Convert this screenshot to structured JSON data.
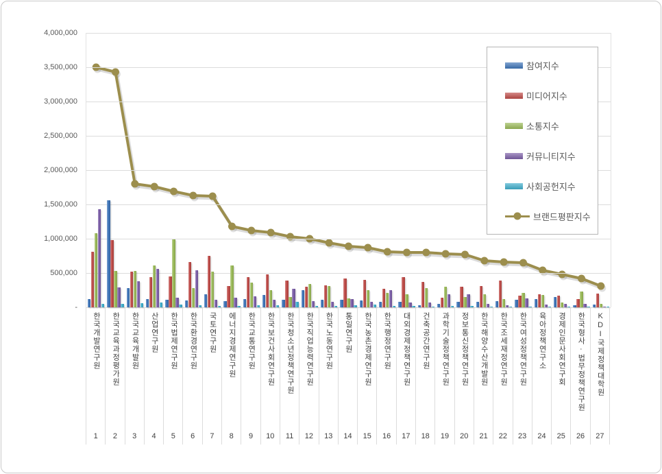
{
  "page": {
    "background": "#ffffff",
    "border_color": "#c9c9c9"
  },
  "chart_data": {
    "type": "bar",
    "title": "",
    "xlabel": "",
    "ylabel": "",
    "legend_position": "top-right",
    "grid": true,
    "y_axis": {
      "min": 0,
      "max": 4000000,
      "step": 500000,
      "tick_labels": [
        "4,000,000",
        "3,500,000",
        "3,000,000",
        "2,500,000",
        "2,000,000",
        "1,500,000",
        "1,000,000",
        "500,000",
        "-"
      ]
    },
    "categories": [
      "한국개발연구원",
      "한국교육과정평가원",
      "한국교육개발원",
      "산업연구원",
      "한국법제연구원",
      "한국환경연구원",
      "국토연구원",
      "에너지경제연구원",
      "한국교통연구원",
      "한국보건사회연구원",
      "한국청소년정책연구원",
      "한국직업능력연구원",
      "한국노동연구원",
      "통일연구원",
      "한국농촌경제연구원",
      "한국행정연구원",
      "대외경제정책연구원",
      "건축공간연구원",
      "과학기술정책연구원",
      "정보통신정책연구원",
      "한국해양수산개발원",
      "한국조세재정연구원",
      "한국여성정책연구원",
      "육아정책연구소",
      "경제인문사회연구회",
      "한국형사·법무정책연구원",
      "KDI국제정책대학원"
    ],
    "ranks": [
      "1",
      "2",
      "3",
      "4",
      "5",
      "6",
      "7",
      "8",
      "9",
      "10",
      "11",
      "12",
      "13",
      "14",
      "15",
      "16",
      "17",
      "18",
      "19",
      "20",
      "21",
      "22",
      "23",
      "24",
      "25",
      "26",
      "27"
    ],
    "series": [
      {
        "name": "참여지수",
        "color": "#3E74B8",
        "values": [
          120000,
          1560000,
          280000,
          120000,
          110000,
          100000,
          190000,
          90000,
          120000,
          180000,
          115000,
          250000,
          115000,
          110000,
          100000,
          80000,
          80000,
          30000,
          55000,
          80000,
          80000,
          90000,
          110000,
          120000,
          150000,
          30000,
          40000
        ]
      },
      {
        "name": "미디어지수",
        "color": "#BE4B48",
        "values": [
          810000,
          980000,
          520000,
          440000,
          450000,
          660000,
          750000,
          310000,
          440000,
          480000,
          390000,
          300000,
          320000,
          420000,
          400000,
          270000,
          440000,
          370000,
          140000,
          300000,
          310000,
          390000,
          170000,
          190000,
          170000,
          120000,
          200000
        ]
      },
      {
        "name": "소통지수",
        "color": "#9ABA58",
        "values": [
          1080000,
          530000,
          530000,
          610000,
          990000,
          280000,
          520000,
          610000,
          360000,
          255000,
          155000,
          340000,
          310000,
          130000,
          250000,
          210000,
          190000,
          280000,
          300000,
          150000,
          190000,
          120000,
          210000,
          180000,
          70000,
          230000,
          50000
        ]
      },
      {
        "name": "커뮤니티지수",
        "color": "#7B5EA7",
        "values": [
          1430000,
          290000,
          380000,
          560000,
          140000,
          540000,
          110000,
          140000,
          160000,
          110000,
          275000,
          90000,
          80000,
          120000,
          80000,
          250000,
          70000,
          70000,
          190000,
          190000,
          50000,
          30000,
          130000,
          40000,
          50000,
          50000,
          10000
        ]
      },
      {
        "name": "사회공헌지수",
        "color": "#3FAECC",
        "values": [
          50000,
          50000,
          60000,
          70000,
          40000,
          30000,
          20000,
          20000,
          30000,
          30000,
          80000,
          20000,
          25000,
          30000,
          40000,
          20000,
          20000,
          15000,
          20000,
          20000,
          15000,
          15000,
          15000,
          15000,
          10000,
          10000,
          10000
        ]
      }
    ],
    "line_series": {
      "name": "브랜드평판지수",
      "color": "#9C8E4D",
      "values": [
        3500000,
        3430000,
        1800000,
        1760000,
        1690000,
        1630000,
        1620000,
        1180000,
        1120000,
        1090000,
        1030000,
        1000000,
        940000,
        890000,
        870000,
        810000,
        800000,
        800000,
        780000,
        770000,
        680000,
        660000,
        650000,
        540000,
        480000,
        420000,
        310000
      ]
    }
  }
}
